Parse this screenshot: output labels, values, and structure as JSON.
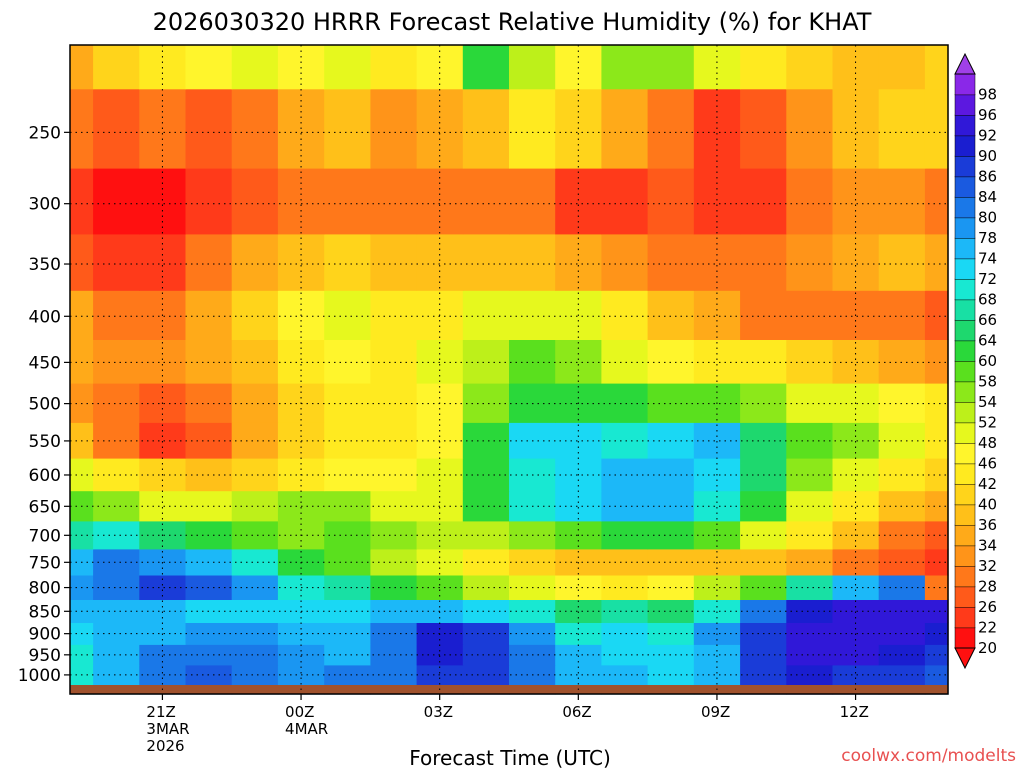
{
  "chart_data": {
    "type": "heatmap",
    "title": "2026030320 HRRR Forecast Relative Humidity (%) for KHAT",
    "xlabel": "Forecast Time (UTC)",
    "ylabel": "",
    "watermark": "coolwx.com/modelts",
    "x_hours": [
      19,
      20,
      21,
      22,
      23,
      24,
      25,
      26,
      27,
      28,
      29,
      30,
      31,
      32,
      33,
      34,
      35,
      36,
      37,
      38
    ],
    "x_range_hours": [
      19,
      38
    ],
    "x_ticks": [
      {
        "hour": 21,
        "lines": [
          "21Z",
          "3MAR",
          "2026"
        ]
      },
      {
        "hour": 24,
        "lines": [
          "00Z",
          "4MAR"
        ]
      },
      {
        "hour": 27,
        "lines": [
          "03Z"
        ]
      },
      {
        "hour": 30,
        "lines": [
          "06Z"
        ]
      },
      {
        "hour": 33,
        "lines": [
          "09Z"
        ]
      },
      {
        "hour": 36,
        "lines": [
          "12Z"
        ]
      }
    ],
    "y_scale": "log",
    "y_range_hpa": [
      1050,
      200
    ],
    "y_ticks": [
      "1000",
      "950",
      "900",
      "850",
      "800",
      "750",
      "700",
      "650",
      "600",
      "550",
      "500",
      "450",
      "400",
      "350",
      "300",
      "250"
    ],
    "grid": true,
    "levels_hpa": [
      1000,
      950,
      900,
      850,
      800,
      750,
      700,
      650,
      600,
      550,
      500,
      450,
      400,
      350,
      300,
      250,
      200
    ],
    "rh": [
      [
        70,
        76,
        80,
        84,
        82,
        78,
        80,
        82,
        88,
        86,
        80,
        76,
        74,
        72,
        74,
        86,
        90,
        88,
        86,
        84
      ],
      [
        70,
        74,
        80,
        82,
        80,
        78,
        76,
        80,
        90,
        88,
        80,
        74,
        72,
        72,
        76,
        88,
        92,
        92,
        90,
        86
      ],
      [
        72,
        74,
        76,
        78,
        78,
        76,
        76,
        80,
        90,
        86,
        78,
        70,
        72,
        70,
        78,
        88,
        94,
        94,
        92,
        90
      ],
      [
        74,
        76,
        74,
        72,
        72,
        72,
        72,
        74,
        76,
        72,
        68,
        64,
        66,
        64,
        70,
        82,
        90,
        94,
        94,
        92
      ],
      [
        78,
        82,
        86,
        84,
        78,
        70,
        66,
        62,
        58,
        52,
        48,
        46,
        44,
        46,
        52,
        58,
        66,
        76,
        82,
        28
      ],
      [
        76,
        80,
        78,
        76,
        70,
        62,
        58,
        52,
        48,
        44,
        40,
        36,
        36,
        38,
        38,
        38,
        34,
        30,
        26,
        24
      ],
      [
        66,
        68,
        64,
        60,
        58,
        56,
        58,
        56,
        52,
        52,
        54,
        58,
        62,
        62,
        58,
        50,
        42,
        36,
        30,
        26
      ],
      [
        58,
        56,
        50,
        48,
        52,
        56,
        56,
        50,
        48,
        60,
        68,
        72,
        74,
        74,
        70,
        60,
        50,
        44,
        38,
        34
      ],
      [
        48,
        42,
        40,
        36,
        40,
        44,
        46,
        46,
        48,
        62,
        70,
        72,
        76,
        76,
        72,
        64,
        56,
        50,
        44,
        40
      ],
      [
        36,
        28,
        24,
        26,
        34,
        40,
        44,
        44,
        46,
        60,
        72,
        72,
        70,
        72,
        74,
        64,
        58,
        54,
        48,
        44
      ],
      [
        32,
        28,
        26,
        28,
        34,
        40,
        44,
        42,
        46,
        54,
        60,
        62,
        60,
        58,
        58,
        54,
        50,
        48,
        46,
        44
      ],
      [
        34,
        32,
        32,
        34,
        38,
        44,
        46,
        42,
        48,
        52,
        58,
        56,
        50,
        46,
        44,
        42,
        40,
        36,
        34,
        32
      ],
      [
        34,
        30,
        30,
        34,
        40,
        46,
        48,
        44,
        44,
        48,
        50,
        48,
        42,
        38,
        34,
        30,
        28,
        30,
        30,
        26
      ],
      [
        26,
        22,
        24,
        28,
        34,
        38,
        40,
        38,
        36,
        38,
        36,
        34,
        32,
        30,
        28,
        30,
        32,
        34,
        36,
        34
      ],
      [
        24,
        20,
        20,
        22,
        26,
        28,
        30,
        30,
        28,
        30,
        28,
        24,
        22,
        26,
        22,
        24,
        28,
        32,
        32,
        30
      ],
      [
        28,
        26,
        30,
        26,
        28,
        34,
        36,
        32,
        34,
        38,
        42,
        40,
        34,
        28,
        24,
        26,
        32,
        36,
        40,
        40
      ],
      [
        34,
        40,
        44,
        46,
        48,
        46,
        50,
        44,
        46,
        60,
        52,
        46,
        54,
        56,
        48,
        42,
        40,
        38,
        36,
        40
      ]
    ],
    "colorbar": {
      "labels": [
        20,
        22,
        26,
        28,
        32,
        34,
        36,
        40,
        42,
        46,
        48,
        52,
        54,
        58,
        60,
        64,
        66,
        68,
        72,
        74,
        78,
        80,
        84,
        86,
        90,
        92,
        96,
        98
      ],
      "colors": [
        "#ff1010",
        "#ff3a1a",
        "#ff5a1a",
        "#ff781a",
        "#ff9419",
        "#ffaa19",
        "#ffc019",
        "#ffd41b",
        "#ffea20",
        "#fff52c",
        "#e6f81e",
        "#bdf01a",
        "#8ce81a",
        "#5ae01e",
        "#2ad83a",
        "#1ed86e",
        "#18e0a4",
        "#18e8d2",
        "#1ad8f4",
        "#1cb8f8",
        "#1a96f2",
        "#1a78e8",
        "#1a5ae0",
        "#1a3cd8",
        "#1a1ed0",
        "#3018d8",
        "#5c18e0",
        "#8a28e8"
      ]
    },
    "ground_color": "#a0522d"
  }
}
